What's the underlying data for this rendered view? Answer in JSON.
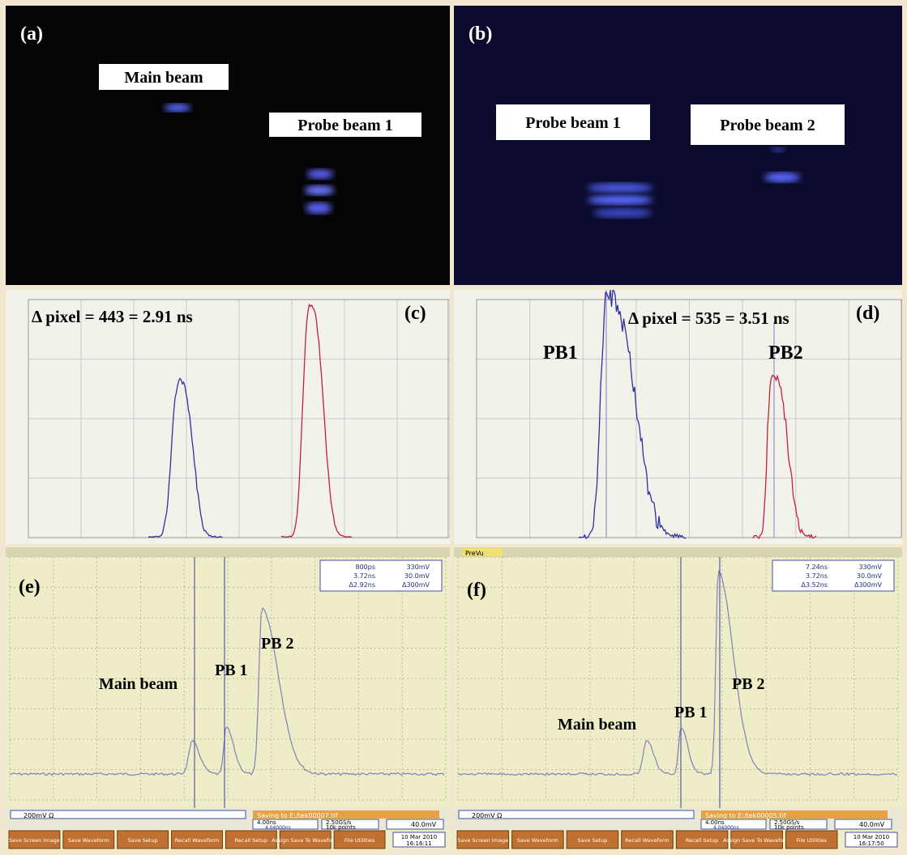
{
  "panels": [
    {
      "label": "(a)",
      "annotations": [
        "Main beam",
        "Probe beam 1"
      ]
    },
    {
      "label": "(b)",
      "annotations": [
        "Probe beam 1",
        "Probe beam 2"
      ]
    },
    {
      "label": "(c)",
      "annotations": [
        "Δ pixel = 443 = 2.91 ns"
      ]
    },
    {
      "label": "(d)",
      "annotations": [
        "Δ pixel = 535 = 3.51 ns",
        "PB1",
        "PB2"
      ]
    },
    {
      "label": "(e)",
      "annotations": [
        "Main beam",
        "PB 1",
        "PB 2"
      ],
      "cursor_readout": [
        "800ps",
        "330mV",
        "3.72ns",
        "30.0mV",
        "Δ2.92ns",
        "Δ300mV"
      ],
      "channel": "200mV Ω",
      "saving": "Saving to E:/tek00007.tif",
      "timebase": [
        "4.00ns",
        "4.04000ns"
      ],
      "sampling": [
        "2.50GS/s",
        "10k points"
      ],
      "trigger": "40.0mV",
      "date": [
        "10 Mar 2010",
        "16:16:11"
      ]
    },
    {
      "label": "(f)",
      "annotations": [
        "Main beam",
        "PB 1",
        "PB 2"
      ],
      "menu": "PreVu",
      "cursor_readout": [
        "7.24ns",
        "330mV",
        "3.72ns",
        "30.0mV",
        "Δ3.52ns",
        "Δ300mV"
      ],
      "channel": "200mV Ω",
      "saving": "Saving to E:/tek00005.tif",
      "timebase": [
        "4.00ns",
        "4.04000ns"
      ],
      "sampling": [
        "2.50GS/s",
        "10k points"
      ],
      "trigger": "40.0mV",
      "date": [
        "10 Mar 2010",
        "16:17:50"
      ]
    }
  ],
  "buttons": [
    "Save Screen Image",
    "Save Waveform",
    "Save Setup",
    "Recall Waveform",
    "Recall Setup",
    "Assign Save To Waveform",
    "File Utilities"
  ]
}
